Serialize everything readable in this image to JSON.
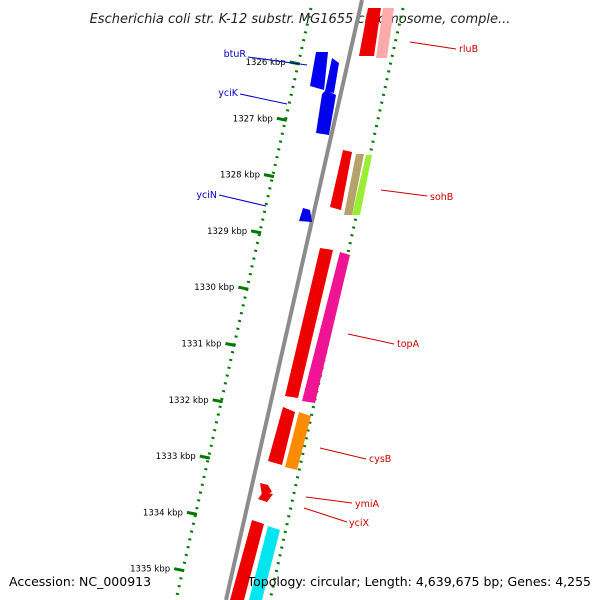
{
  "title": "Escherichia coli str. K-12 substr. MG1655 chromosome, comple...",
  "footer": {
    "accession": "Accession: NC_000913",
    "summary": "Topology: circular; Length: 4,639,675 bp; Genes: 4,255"
  },
  "ticks": [
    {
      "label": "1326 kbp",
      "pos": 1326
    },
    {
      "label": "1327 kbp",
      "pos": 1327
    },
    {
      "label": "1328 kbp",
      "pos": 1328
    },
    {
      "label": "1329 kbp",
      "pos": 1329
    },
    {
      "label": "1330 kbp",
      "pos": 1330
    },
    {
      "label": "1331 kbp",
      "pos": 1331
    },
    {
      "label": "1332 kbp",
      "pos": 1332
    },
    {
      "label": "1333 kbp",
      "pos": 1333
    },
    {
      "label": "1334 kbp",
      "pos": 1334
    },
    {
      "label": "1335 kbp",
      "pos": 1335
    }
  ],
  "genes_left": [
    {
      "name": "btuR",
      "color": "#0000cc"
    },
    {
      "name": "yciK",
      "color": "#0000cc"
    },
    {
      "name": "yciN",
      "color": "#0000cc"
    }
  ],
  "genes_right": [
    {
      "name": "rluB",
      "color": "#cc0000"
    },
    {
      "name": "sohB",
      "color": "#cc0000"
    },
    {
      "name": "topA",
      "color": "#cc0000"
    },
    {
      "name": "cysB",
      "color": "#cc0000"
    },
    {
      "name": "ymiA",
      "color": "#cc0000"
    },
    {
      "name": "yciX",
      "color": "#cc0000"
    }
  ],
  "colors": {
    "backbone": "#8c8c8c",
    "tick_marks": "#007700",
    "reverse_gene": "#0000ee",
    "forward_gene": "#ee0000",
    "cog_pink": "#ee1493",
    "cog_orange": "#ff8c00",
    "cog_olive": "#b5a36b",
    "cog_lime": "#99ee33",
    "cog_cyan": "#00e5ee"
  }
}
